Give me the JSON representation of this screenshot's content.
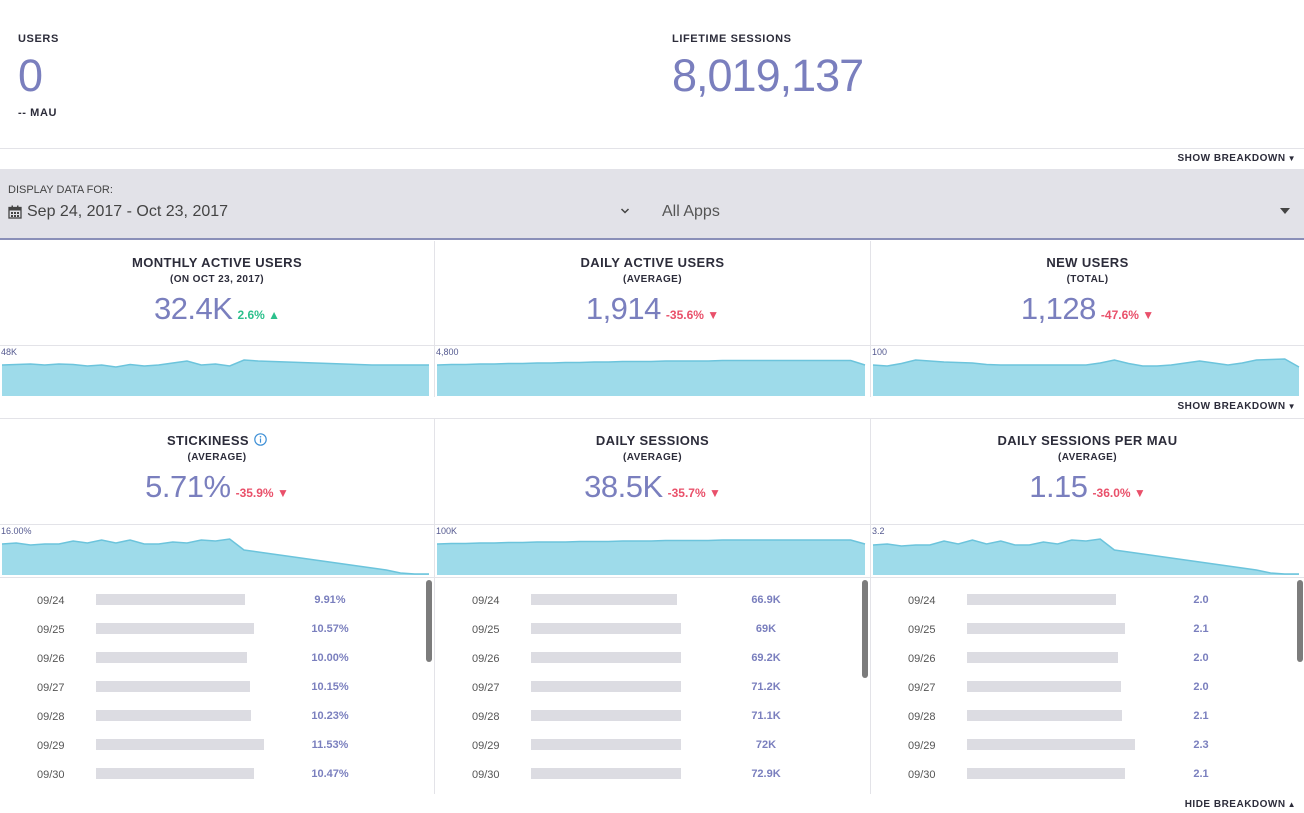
{
  "summary": {
    "users_label": "USERS",
    "users_value": "0",
    "mau_label": "-- MAU",
    "sessions_label": "LIFETIME SESSIONS",
    "sessions_value": "8,019,137"
  },
  "show_breakdown_label": "SHOW BREAKDOWN",
  "hide_breakdown_label": "HIDE BREAKDOWN",
  "filter": {
    "display_label": "DISPLAY DATA FOR:",
    "date_range": "Sep 24, 2017 - Oct 23, 2017",
    "app_select": "All Apps"
  },
  "colors": {
    "accent": "#7a7fbe",
    "spark_fill": "#9edbea",
    "spark_line": "#6cc4dc",
    "up": "#2cc08c",
    "down": "#e9506a"
  },
  "metrics": [
    {
      "title": "MONTHLY ACTIVE USERS",
      "subtitle": "(ON OCT 23, 2017)",
      "value": "32.4K",
      "change": "2.6%",
      "direction": "up",
      "spark_max": "48K",
      "spark": [
        0.62,
        0.63,
        0.64,
        0.62,
        0.64,
        0.63,
        0.6,
        0.62,
        0.58,
        0.63,
        0.6,
        0.62,
        0.66,
        0.7,
        0.62,
        0.64,
        0.6,
        0.72,
        0.7,
        0.69,
        0.68,
        0.67,
        0.66,
        0.65,
        0.64,
        0.63,
        0.62,
        0.62,
        0.62,
        0.62,
        0.62
      ]
    },
    {
      "title": "DAILY ACTIVE USERS",
      "subtitle": "(AVERAGE)",
      "value": "1,914",
      "change": "-35.6%",
      "direction": "down",
      "spark_max": "4,800",
      "spark": [
        0.62,
        0.63,
        0.63,
        0.64,
        0.64,
        0.65,
        0.65,
        0.66,
        0.66,
        0.67,
        0.67,
        0.68,
        0.68,
        0.69,
        0.69,
        0.69,
        0.7,
        0.7,
        0.7,
        0.7,
        0.71,
        0.71,
        0.71,
        0.71,
        0.71,
        0.71,
        0.71,
        0.71,
        0.71,
        0.71,
        0.62
      ]
    },
    {
      "title": "NEW USERS",
      "subtitle": "(TOTAL)",
      "value": "1,128",
      "change": "-47.6%",
      "direction": "down",
      "spark_max": "100",
      "spark": [
        0.62,
        0.6,
        0.65,
        0.72,
        0.7,
        0.68,
        0.67,
        0.66,
        0.63,
        0.62,
        0.62,
        0.62,
        0.62,
        0.62,
        0.62,
        0.62,
        0.66,
        0.72,
        0.65,
        0.6,
        0.6,
        0.62,
        0.66,
        0.7,
        0.66,
        0.62,
        0.66,
        0.72,
        0.73,
        0.74,
        0.58
      ]
    },
    {
      "title": "STICKINESS",
      "subtitle": "(AVERAGE)",
      "value": "5.71%",
      "change": "-35.9%",
      "direction": "down",
      "spark_max": "16.00%",
      "spark": [
        0.62,
        0.64,
        0.6,
        0.62,
        0.62,
        0.68,
        0.64,
        0.7,
        0.64,
        0.7,
        0.62,
        0.62,
        0.66,
        0.64,
        0.7,
        0.68,
        0.72,
        0.5,
        0.46,
        0.42,
        0.38,
        0.34,
        0.3,
        0.26,
        0.22,
        0.18,
        0.14,
        0.1,
        0.04,
        0.02,
        0.02
      ]
    },
    {
      "title": "DAILY SESSIONS",
      "subtitle": "(AVERAGE)",
      "value": "38.5K",
      "change": "-35.7%",
      "direction": "down",
      "spark_max": "100K",
      "spark": [
        0.62,
        0.63,
        0.63,
        0.64,
        0.64,
        0.65,
        0.65,
        0.66,
        0.66,
        0.66,
        0.67,
        0.67,
        0.67,
        0.68,
        0.68,
        0.68,
        0.69,
        0.69,
        0.69,
        0.69,
        0.7,
        0.7,
        0.7,
        0.7,
        0.7,
        0.7,
        0.7,
        0.7,
        0.7,
        0.7,
        0.62
      ]
    },
    {
      "title": "DAILY SESSIONS PER MAU",
      "subtitle": "(AVERAGE)",
      "value": "1.15",
      "change": "-36.0%",
      "direction": "down",
      "spark_max": "3.2",
      "spark": [
        0.6,
        0.62,
        0.58,
        0.6,
        0.6,
        0.68,
        0.62,
        0.7,
        0.62,
        0.68,
        0.6,
        0.6,
        0.66,
        0.62,
        0.7,
        0.68,
        0.72,
        0.5,
        0.46,
        0.42,
        0.38,
        0.34,
        0.3,
        0.26,
        0.22,
        0.18,
        0.14,
        0.1,
        0.04,
        0.02,
        0.02
      ]
    }
  ],
  "breakdown": [
    {
      "rows": [
        {
          "date": "09/24",
          "value": "9.91%",
          "fraction": 0.62
        },
        {
          "date": "09/25",
          "value": "10.57%",
          "fraction": 0.66
        },
        {
          "date": "09/26",
          "value": "10.00%",
          "fraction": 0.63
        },
        {
          "date": "09/27",
          "value": "10.15%",
          "fraction": 0.64
        },
        {
          "date": "09/28",
          "value": "10.23%",
          "fraction": 0.645
        },
        {
          "date": "09/29",
          "value": "11.53%",
          "fraction": 0.7
        },
        {
          "date": "09/30",
          "value": "10.47%",
          "fraction": 0.66
        }
      ]
    },
    {
      "rows": [
        {
          "date": "09/24",
          "value": "66.9K",
          "fraction": 0.68
        },
        {
          "date": "09/25",
          "value": "69K",
          "fraction": 0.7
        },
        {
          "date": "09/26",
          "value": "69.2K",
          "fraction": 0.7
        },
        {
          "date": "09/27",
          "value": "71.2K",
          "fraction": 0.7
        },
        {
          "date": "09/28",
          "value": "71.1K",
          "fraction": 0.7
        },
        {
          "date": "09/29",
          "value": "72K",
          "fraction": 0.7
        },
        {
          "date": "09/30",
          "value": "72.9K",
          "fraction": 0.7
        }
      ]
    },
    {
      "rows": [
        {
          "date": "09/24",
          "value": "2.0",
          "fraction": 0.62
        },
        {
          "date": "09/25",
          "value": "2.1",
          "fraction": 0.66
        },
        {
          "date": "09/26",
          "value": "2.0",
          "fraction": 0.63
        },
        {
          "date": "09/27",
          "value": "2.0",
          "fraction": 0.64
        },
        {
          "date": "09/28",
          "value": "2.1",
          "fraction": 0.645
        },
        {
          "date": "09/29",
          "value": "2.3",
          "fraction": 0.7
        },
        {
          "date": "09/30",
          "value": "2.1",
          "fraction": 0.66
        }
      ]
    }
  ]
}
